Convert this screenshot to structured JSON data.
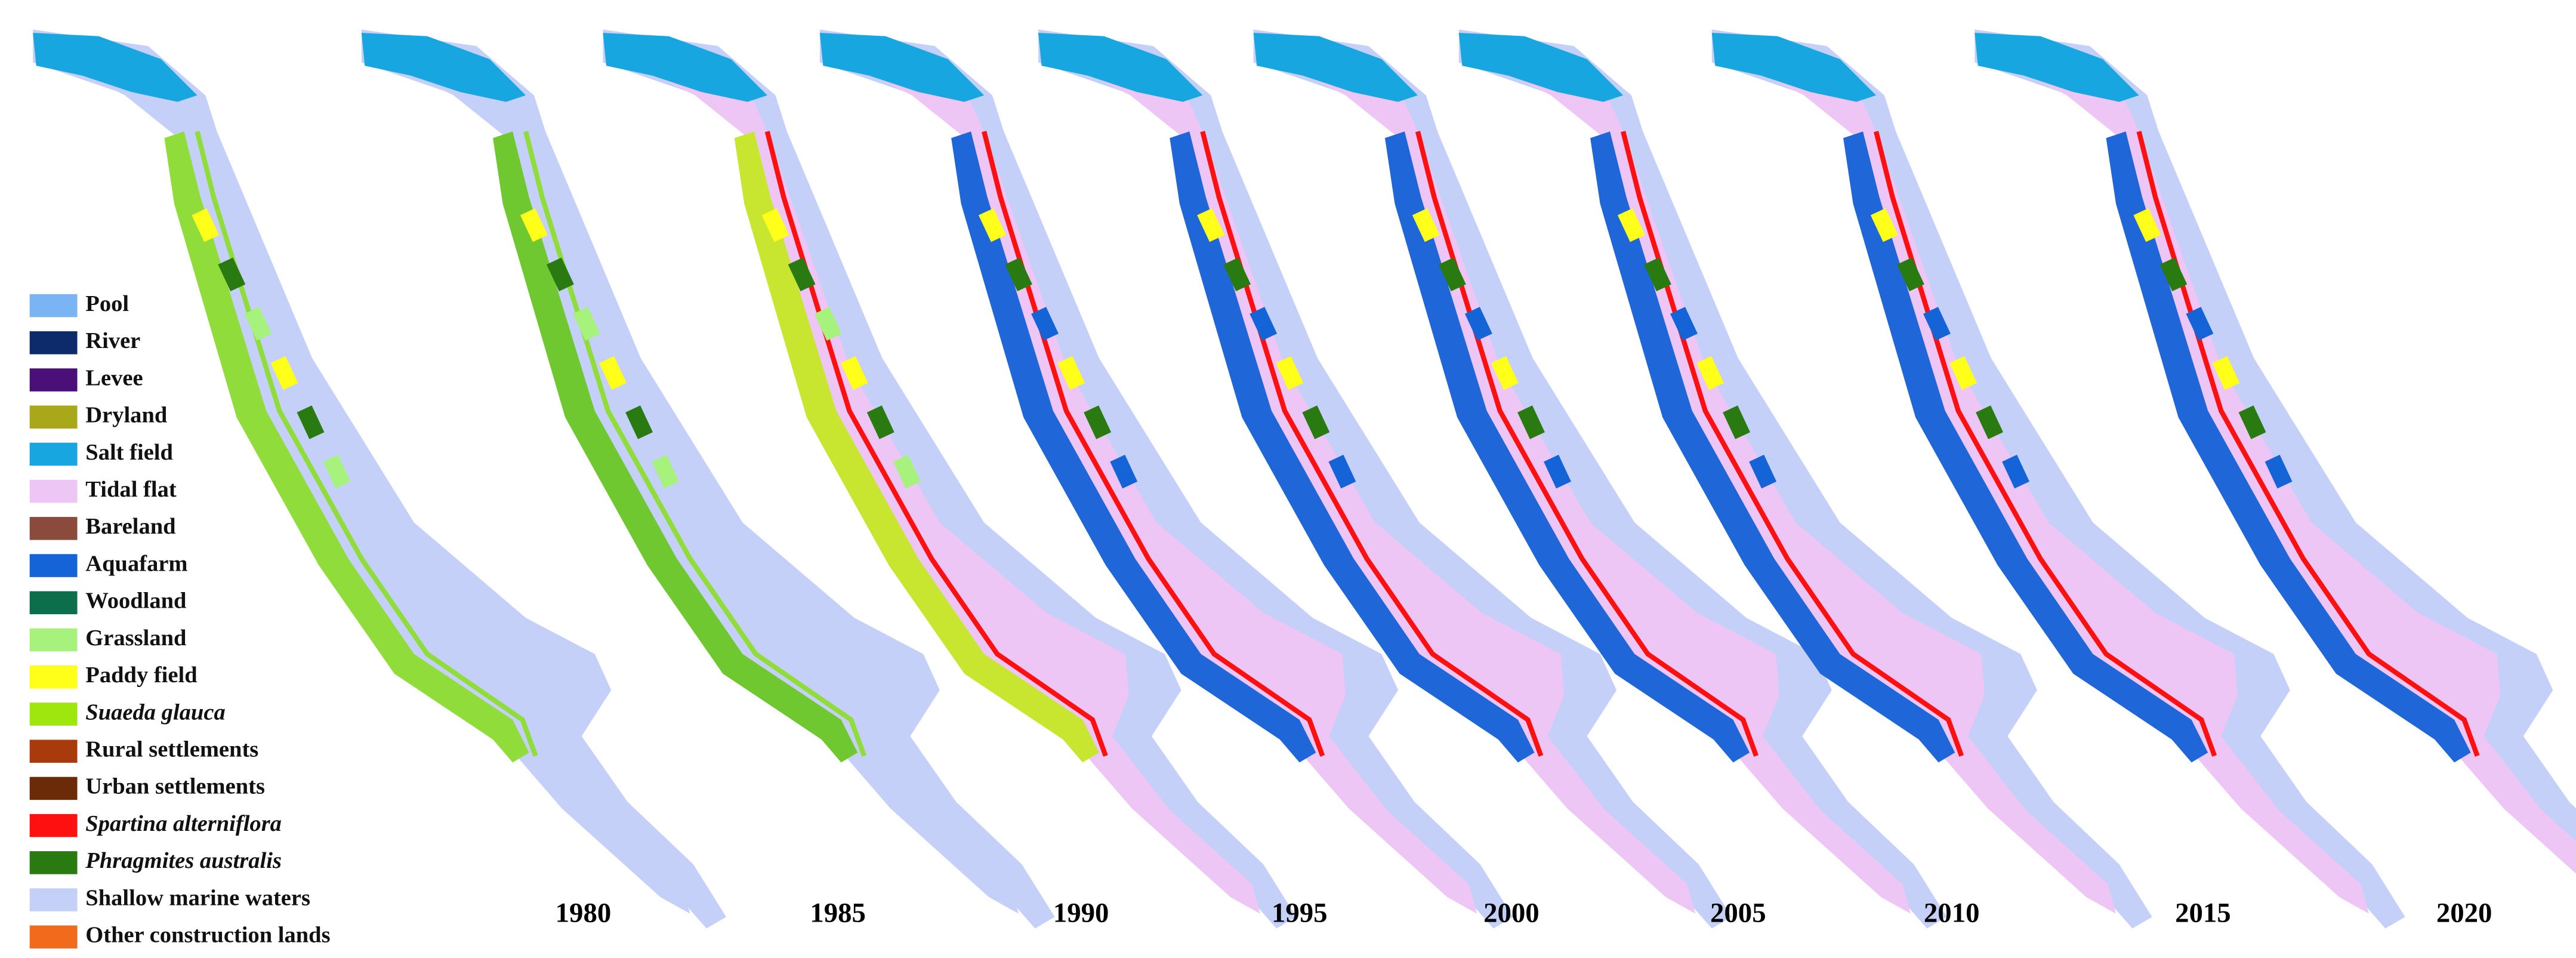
{
  "legend": [
    {
      "label": "Pool",
      "color": "#7ab4f5"
    },
    {
      "label": "River",
      "color": "#0d2a6b"
    },
    {
      "label": "Levee",
      "color": "#4b0f7a"
    },
    {
      "label": "Dryland",
      "color": "#a8a81a"
    },
    {
      "label": "Salt field",
      "color": "#17a6e0"
    },
    {
      "label": "Tidal flat",
      "color": "#eec6f5"
    },
    {
      "label": "Bareland",
      "color": "#8a4a3c"
    },
    {
      "label": "Aquafarm",
      "color": "#1464d8"
    },
    {
      "label": "Woodland",
      "color": "#0c6e4a"
    },
    {
      "label": "Grassland",
      "color": "#a6f27c"
    },
    {
      "label": "Paddy field",
      "color": "#ffff1a"
    },
    {
      "label": "Suaeda glauca",
      "color": "#9fe60f",
      "italic": true
    },
    {
      "label": "Rural settlements",
      "color": "#a83a0c"
    },
    {
      "label": "Urban settlements",
      "color": "#6b2a08"
    },
    {
      "label": "Spartina alterniflora",
      "color": "#ff1010",
      "italic": true
    },
    {
      "label": "Phragmites australis",
      "color": "#2a7a12",
      "italic": true
    },
    {
      "label": "Shallow marine waters",
      "color": "#c4d0f7"
    },
    {
      "label": "Other construction lands",
      "color": "#f26a1c"
    }
  ],
  "years": [
    1980,
    1985,
    1990,
    1995,
    2000,
    2005,
    2010,
    2015,
    2020
  ]
}
